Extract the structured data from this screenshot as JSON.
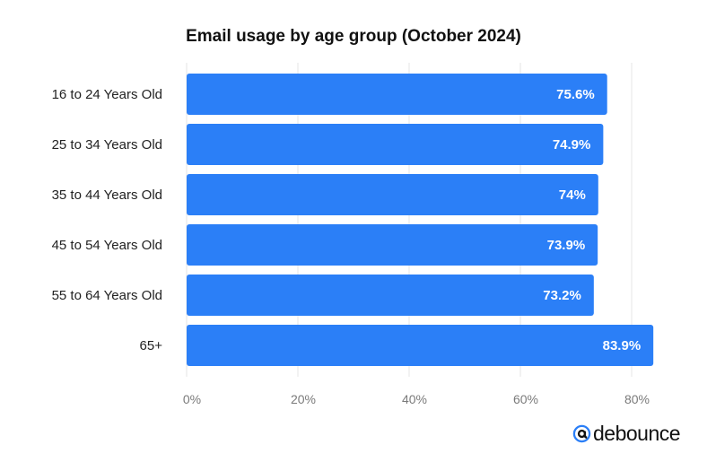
{
  "chart_data": {
    "type": "bar",
    "orientation": "horizontal",
    "title": "Email usage by age group (October 2024)",
    "categories": [
      "16 to 24 Years Old",
      "25 to 34 Years Old",
      "35 to 44 Years Old",
      "45 to 54 Years Old",
      "55 to 64 Years Old",
      "65+"
    ],
    "values": [
      75.6,
      74.9,
      74,
      73.9,
      73.2,
      83.9
    ],
    "value_labels": [
      "75.6%",
      "74.9%",
      "74%",
      "73.9%",
      "73.2%",
      "83.9%"
    ],
    "xlim": [
      0,
      85
    ],
    "xticks": [
      0,
      20,
      40,
      60,
      80
    ],
    "xtick_labels": [
      "0%",
      "20%",
      "40%",
      "60%",
      "80%"
    ],
    "grid": true,
    "bar_color": "#2b7ff7"
  },
  "brand": {
    "logo_text": "debounce",
    "logo_color": "#2b7ff7"
  }
}
